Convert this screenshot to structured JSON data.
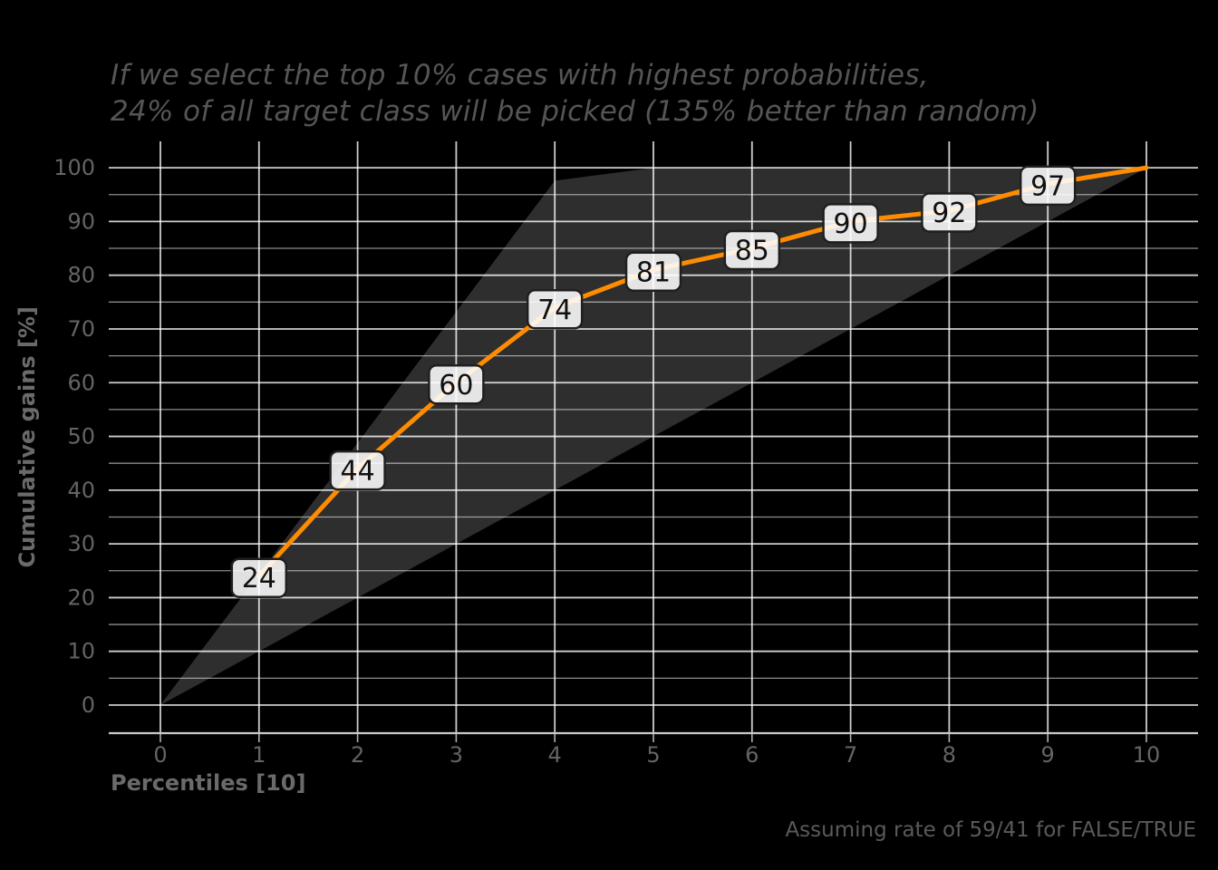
{
  "title": {
    "line1": "If we select the top 10% cases with highest probabilities,",
    "line2": "24% of all target class will be picked (135% better than random)"
  },
  "footnote": "Assuming rate of 59/41 for FALSE/TRUE",
  "axes": {
    "x_label": "Percentiles [10]",
    "y_label": "Cumulative gains [%]"
  },
  "chart_data": {
    "type": "line",
    "title": "If we select the top 10% cases with highest probabilities, 24% of all target class will be picked (135% better than random)",
    "xlabel": "Percentiles [10]",
    "ylabel": "Cumulative gains [%]",
    "xlim": [
      -0.5,
      10.5
    ],
    "ylim": [
      -5,
      105
    ],
    "x_ticks": [
      0,
      1,
      2,
      3,
      4,
      5,
      6,
      7,
      8,
      9,
      10
    ],
    "y_ticks": [
      0,
      10,
      20,
      30,
      40,
      50,
      60,
      70,
      80,
      90,
      100
    ],
    "grid": {
      "horizontal_major_step": 10,
      "horizontal_minor_step": 5,
      "vertical_step": 1,
      "legend": "none"
    },
    "series": [
      {
        "name": "cumulative-gains",
        "x": [
          1,
          2,
          3,
          4,
          5,
          6,
          7,
          8,
          9,
          10
        ],
        "values": [
          24,
          44,
          60,
          74,
          81,
          85,
          90,
          92,
          97,
          100
        ],
        "labeled_values": [
          24,
          44,
          60,
          74,
          81,
          85,
          90,
          92,
          97
        ],
        "color": "#ff8c00"
      },
      {
        "name": "best-case-vs-random-envelope",
        "type": "area",
        "upper_boundary": [
          [
            0,
            0
          ],
          [
            4,
            97.6
          ],
          [
            5,
            100
          ],
          [
            10,
            100
          ]
        ],
        "lower_boundary": [
          [
            0,
            0
          ],
          [
            10,
            100
          ]
        ],
        "color": "#2e2e2e"
      }
    ]
  },
  "colors": {
    "background": "#000000",
    "accent_orange": "#ff8c00",
    "envelope_fill": "#2e2e2e",
    "grid_major": "rgba(255,255,255,0.80)",
    "grid_minor": "rgba(255,255,255,0.55)",
    "spine": "#c9c9c9",
    "tick_mark": "#b0b0b0",
    "tick_text": "#646464",
    "title_text": "#555555",
    "label_box_fill": "#ffffff",
    "label_box_border": "#1f1f1f",
    "label_text": "#111111"
  }
}
